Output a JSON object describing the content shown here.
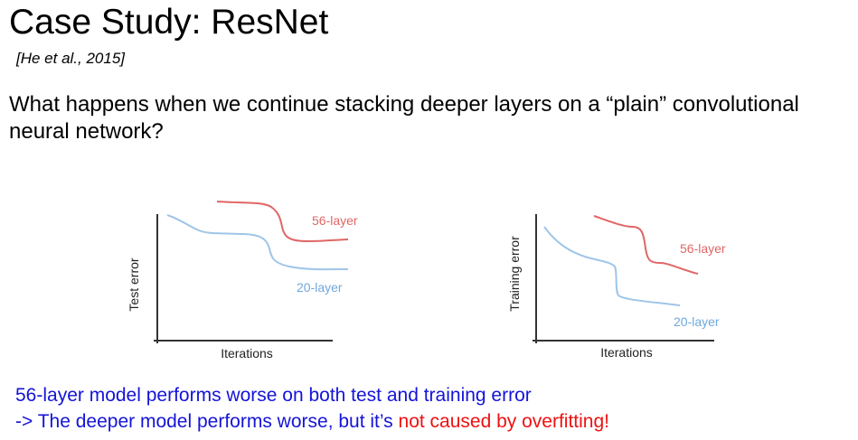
{
  "slide": {
    "title": "Case Study: ResNet",
    "citation": "[He et al., 2015]",
    "question": "What happens when we continue stacking deeper layers on a “plain” convolutional neural network?",
    "conclusion_line1": "56-layer model performs worse on both test and training error",
    "conclusion_line2_prefix": "-> The deeper model performs worse, but it’s ",
    "conclusion_line2_highlight": "not caused by overfitting!",
    "colors": {
      "text_blue": "#1414d8",
      "highlight_red": "#ee1111",
      "curve_red": "#e06666",
      "curve_blue": "#9fc5e8"
    }
  },
  "chart_data": [
    {
      "type": "line",
      "xlabel": "Iterations",
      "ylabel": "Test error",
      "x": [
        0,
        0.1,
        0.2,
        0.3,
        0.4,
        0.5,
        0.55,
        0.6,
        0.7,
        0.8,
        0.9,
        1.0
      ],
      "series": [
        {
          "name": "56-layer",
          "color": "#e06666",
          "values": [
            null,
            null,
            null,
            0.92,
            0.91,
            0.9,
            0.87,
            0.72,
            0.69,
            0.7,
            0.71,
            0.71
          ]
        },
        {
          "name": "20-layer",
          "color": "#9fc5e8",
          "values": [
            0.82,
            0.72,
            0.7,
            0.7,
            0.69,
            0.62,
            0.48,
            0.41,
            0.39,
            0.39,
            0.4,
            0.4
          ]
        }
      ]
    },
    {
      "type": "line",
      "xlabel": "Iterations",
      "ylabel": "Training error",
      "x": [
        0,
        0.1,
        0.2,
        0.3,
        0.4,
        0.5,
        0.6,
        0.7,
        0.8,
        0.9,
        1.0
      ],
      "series": [
        {
          "name": "56-layer",
          "color": "#e06666",
          "values": [
            null,
            null,
            null,
            0.85,
            0.8,
            0.79,
            0.8,
            0.55,
            0.53,
            0.49,
            0.45
          ]
        },
        {
          "name": "20-layer",
          "color": "#9fc5e8",
          "values": [
            0.78,
            0.58,
            0.5,
            0.46,
            0.44,
            0.43,
            0.3,
            0.16,
            0.15,
            0.14,
            0.13
          ]
        }
      ]
    }
  ]
}
